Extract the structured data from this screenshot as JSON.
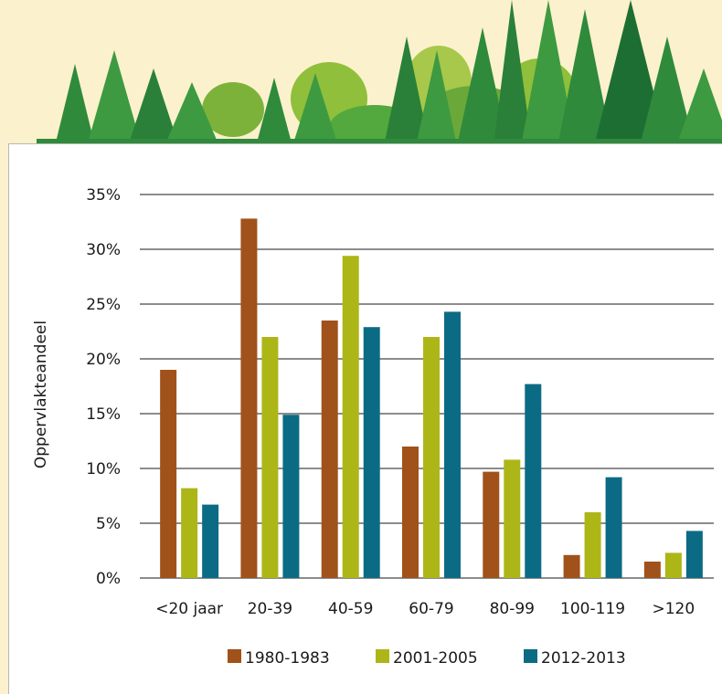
{
  "chart_data": {
    "type": "bar",
    "ylabel": "Oppervlakteandeel",
    "xlabel": "",
    "ylim": [
      0,
      35
    ],
    "yticks": [
      0,
      5,
      10,
      15,
      20,
      25,
      30,
      35
    ],
    "ytick_labels": [
      "0%",
      "5%",
      "10%",
      "15%",
      "20%",
      "25%",
      "30%",
      "35%"
    ],
    "categories": [
      "<20 jaar",
      "20-39",
      "40-59",
      "60-79",
      "80-99",
      "100-119",
      ">120"
    ],
    "series": [
      {
        "name": "1980-1983",
        "color": "#a0521a",
        "values": [
          19.0,
          32.8,
          23.5,
          12.0,
          9.7,
          2.1,
          1.5
        ]
      },
      {
        "name": "2001-2005",
        "color": "#adb617",
        "values": [
          8.2,
          22.0,
          29.4,
          22.0,
          10.8,
          6.0,
          2.3
        ]
      },
      {
        "name": "2012-2013",
        "color": "#0c6b84",
        "values": [
          6.7,
          14.9,
          22.9,
          24.3,
          17.7,
          9.2,
          4.3
        ]
      }
    ],
    "grid": true,
    "legend_position": "bottom"
  },
  "decoration": {
    "banner_icon": "forest-trees-illustration",
    "banner_colors": [
      "#2f8a3c",
      "#53a83e",
      "#8fbf3b",
      "#1d6e33"
    ]
  }
}
